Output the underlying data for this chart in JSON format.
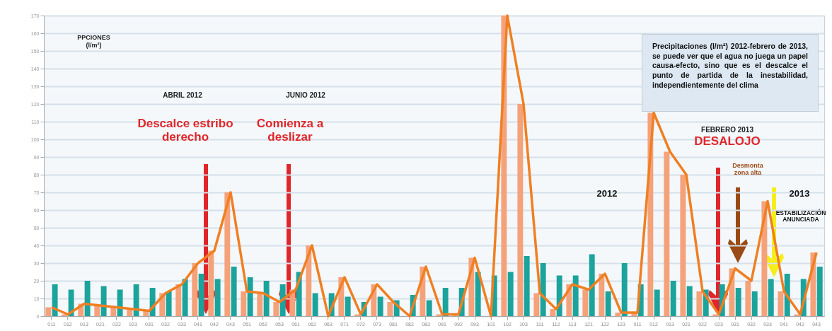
{
  "chart_data": {
    "type": "bar",
    "ylabel": "PPCIONES (l/m²)",
    "categories": [
      "011",
      "012",
      "013",
      "021",
      "022",
      "023",
      "031",
      "032",
      "033",
      "041",
      "042",
      "043",
      "051",
      "052",
      "053",
      "061",
      "062",
      "063",
      "071",
      "072",
      "073",
      "081",
      "082",
      "083",
      "091",
      "092",
      "093",
      "101",
      "102",
      "103",
      "111",
      "112",
      "113",
      "121",
      "122",
      "123",
      "011",
      "012",
      "013",
      "021",
      "022",
      "023",
      "031",
      "032",
      "033",
      "041",
      "042",
      "043"
    ],
    "series": [
      {
        "color": "#f5a27a",
        "values": [
          5,
          1,
          7,
          6,
          5,
          4,
          3,
          13,
          18,
          30,
          37,
          70,
          14,
          13,
          8,
          15,
          40,
          0,
          22,
          1,
          18,
          8,
          0,
          28,
          1,
          1,
          33,
          0,
          170,
          120,
          13,
          4,
          18,
          15,
          24,
          2,
          2,
          115,
          93,
          80,
          14,
          1,
          27,
          20,
          65,
          14,
          1,
          36
        ]
      },
      {
        "color": "#1ba39c",
        "values": [
          18,
          15,
          20,
          17,
          15,
          18,
          16,
          14,
          21,
          24,
          21,
          28,
          22,
          20,
          18,
          25,
          13,
          13,
          11,
          8,
          11,
          9,
          12,
          9,
          16,
          16,
          25,
          23,
          25,
          34,
          30,
          23,
          23,
          35,
          14,
          30,
          18,
          15,
          20,
          17,
          15,
          18,
          16,
          14,
          21,
          24,
          21,
          28
        ]
      },
      {
        "type": "line",
        "color": "#f07f22",
        "values": [
          5,
          1,
          7,
          6,
          5,
          4,
          3,
          13,
          18,
          30,
          37,
          70,
          14,
          13,
          8,
          15,
          40,
          0,
          22,
          1,
          18,
          8,
          0,
          28,
          1,
          1,
          33,
          0,
          170,
          120,
          13,
          4,
          18,
          15,
          24,
          2,
          2,
          115,
          93,
          80,
          14,
          1,
          27,
          20,
          65,
          14,
          1,
          36
        ]
      }
    ],
    "ylim": [
      0,
      170
    ],
    "yticks": [
      0,
      10,
      20,
      30,
      40,
      50,
      60,
      70,
      80,
      90,
      100,
      110,
      120,
      130,
      140,
      150,
      160,
      170
    ],
    "grid": "y",
    "marker": "none",
    "line_style": "solid",
    "annotations": [
      "ABRIL 2012",
      "Descalce estribo derecho",
      "JUNIO 2012",
      "Comienza a deslizar",
      "Precipitaciones (l/m²) 2012-febrero de 2013, se puede ver que el agua no juega un papel causa-efecto, sino que es el descalce el punto de partida de la inestabilidad, independientemente del clima",
      "FEBRERO 2013",
      "DESALOJO",
      "Desmonta zona alta",
      "2012",
      "2013",
      "ESTABILIZACIÓN ANUNCIADA"
    ]
  }
}
